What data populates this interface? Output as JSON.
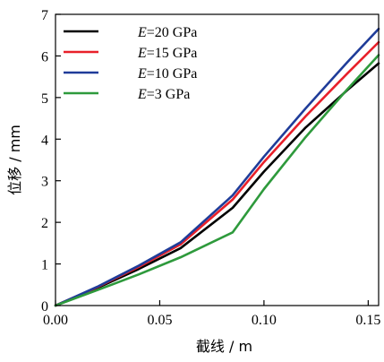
{
  "chart_data": {
    "type": "line",
    "xlabel": "截线 / m",
    "ylabel": "位移 / mm",
    "xlim": [
      0,
      0.155
    ],
    "ylim": [
      0,
      7
    ],
    "x_ticks": [
      "0.00",
      "0.05",
      "0.10",
      "0.15"
    ],
    "y_ticks": [
      "0",
      "1",
      "2",
      "3",
      "4",
      "5",
      "6",
      "7"
    ],
    "legend_position": "top-left",
    "series": [
      {
        "name": "E=20 GPa",
        "legend_prefix": "E",
        "legend_suffix": "=20 GPa",
        "color": "#000000",
        "points": [
          [
            0,
            0
          ],
          [
            0.02,
            0.42
          ],
          [
            0.04,
            0.88
          ],
          [
            0.06,
            1.38
          ],
          [
            0.085,
            2.35
          ],
          [
            0.1,
            3.22
          ],
          [
            0.12,
            4.28
          ],
          [
            0.14,
            5.18
          ],
          [
            0.155,
            5.82
          ]
        ]
      },
      {
        "name": "E=15 GPa",
        "legend_prefix": "E",
        "legend_suffix": "=15 GPa",
        "color": "#e8202a",
        "points": [
          [
            0,
            0
          ],
          [
            0.02,
            0.44
          ],
          [
            0.04,
            0.93
          ],
          [
            0.06,
            1.47
          ],
          [
            0.085,
            2.55
          ],
          [
            0.1,
            3.45
          ],
          [
            0.12,
            4.55
          ],
          [
            0.14,
            5.58
          ],
          [
            0.155,
            6.33
          ]
        ]
      },
      {
        "name": "E=10 GPa",
        "legend_prefix": "E",
        "legend_suffix": "=10 GPa",
        "color": "#1f3c99",
        "points": [
          [
            0,
            0
          ],
          [
            0.02,
            0.45
          ],
          [
            0.04,
            0.96
          ],
          [
            0.06,
            1.52
          ],
          [
            0.085,
            2.65
          ],
          [
            0.1,
            3.58
          ],
          [
            0.12,
            4.74
          ],
          [
            0.14,
            5.85
          ],
          [
            0.155,
            6.65
          ]
        ]
      },
      {
        "name": "E=3 GPa",
        "legend_prefix": "E",
        "legend_suffix": "=3 GPa",
        "color": "#2e9a3c",
        "points": [
          [
            0,
            0
          ],
          [
            0.02,
            0.37
          ],
          [
            0.04,
            0.75
          ],
          [
            0.06,
            1.16
          ],
          [
            0.085,
            1.76
          ],
          [
            0.1,
            2.8
          ],
          [
            0.12,
            4.05
          ],
          [
            0.14,
            5.2
          ],
          [
            0.155,
            6.02
          ]
        ]
      }
    ]
  }
}
